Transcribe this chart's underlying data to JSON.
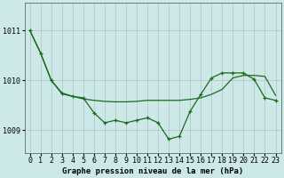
{
  "xlabel": "Graphe pression niveau de la mer (hPa)",
  "bg_color": "#cce8e8",
  "plot_bg_color": "#cce8e8",
  "grid_color": "#b0b0b0",
  "line_color": "#1a6b1a",
  "ylim": [
    1008.55,
    1011.55
  ],
  "xlim": [
    -0.5,
    23.5
  ],
  "yticks": [
    1009,
    1010,
    1011
  ],
  "xticks": [
    0,
    1,
    2,
    3,
    4,
    5,
    6,
    7,
    8,
    9,
    10,
    11,
    12,
    13,
    14,
    15,
    16,
    17,
    18,
    19,
    20,
    21,
    22,
    23
  ],
  "series1_x": [
    0,
    1,
    2,
    3,
    4,
    5,
    6,
    7,
    8,
    9,
    10,
    11,
    12,
    13,
    14,
    15,
    16,
    17,
    18,
    19,
    20,
    21,
    22,
    23
  ],
  "series1_y": [
    1011.0,
    1010.55,
    1010.0,
    1009.75,
    1009.68,
    1009.63,
    1009.6,
    1009.58,
    1009.57,
    1009.57,
    1009.58,
    1009.6,
    1009.6,
    1009.6,
    1009.6,
    1009.62,
    1009.65,
    1009.72,
    1009.82,
    1010.05,
    1010.1,
    1010.1,
    1010.08,
    1009.7
  ],
  "series2_x": [
    0,
    1,
    2,
    3,
    4,
    5,
    6,
    7,
    8,
    9,
    10,
    11,
    12,
    13,
    14,
    15,
    16,
    17,
    18,
    19,
    20,
    21,
    22,
    23
  ],
  "series2_y": [
    1011.0,
    1010.55,
    1010.0,
    1009.73,
    1009.68,
    1009.65,
    1009.35,
    1009.15,
    1009.2,
    1009.15,
    1009.2,
    1009.25,
    1009.15,
    1008.82,
    1008.88,
    1009.38,
    1009.72,
    1010.05,
    1010.15,
    1010.15,
    1010.15,
    1010.02,
    1009.65,
    1009.6
  ],
  "fontsize_label": 6.5,
  "fontsize_tick": 6.0,
  "tick_font": "monospace"
}
